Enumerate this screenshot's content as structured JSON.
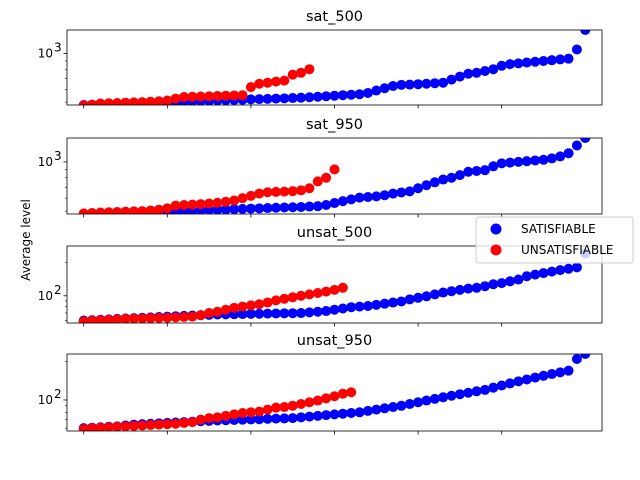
{
  "figure": {
    "ylabel": "Average level",
    "legend_position": "right, overlapping subplots"
  },
  "chart_data": [
    {
      "type": "scatter",
      "title": "sat_500",
      "yscale": "log",
      "ylim": [
        480,
        1400
      ],
      "y_ticks": [
        {
          "value": 1000,
          "label": "10",
          "exp": "3"
        }
      ],
      "series": [
        {
          "name": "SATISFIABLE",
          "color": "#0000ff",
          "x": [
            1,
            2,
            3,
            4,
            5,
            6,
            7,
            8,
            9,
            10,
            11,
            12,
            13,
            14,
            15,
            16,
            17,
            18,
            19,
            20,
            21,
            22,
            23,
            24,
            25,
            26,
            27,
            28,
            29,
            30,
            31,
            32,
            33,
            34,
            35,
            36,
            37,
            38,
            39,
            40,
            41,
            42,
            43,
            44,
            45,
            46,
            47,
            48,
            49,
            50,
            51,
            52,
            53,
            54,
            55,
            56,
            57,
            58,
            59,
            60,
            61
          ],
          "y": [
            480,
            482,
            484,
            486,
            488,
            490,
            492,
            494,
            496,
            498,
            500,
            502,
            504,
            506,
            508,
            510,
            512,
            514,
            516,
            518,
            520,
            522,
            524,
            526,
            528,
            530,
            533,
            536,
            540,
            544,
            548,
            552,
            556,
            560,
            570,
            590,
            610,
            630,
            640,
            642,
            646,
            650,
            655,
            660,
            690,
            720,
            750,
            760,
            780,
            800,
            840,
            860,
            870,
            880,
            890,
            900,
            910,
            920,
            930,
            1060,
            1400
          ]
        },
        {
          "name": "UNSATISFIABLE",
          "color": "#ff0000",
          "x": [
            1,
            2,
            3,
            4,
            5,
            6,
            7,
            8,
            9,
            10,
            11,
            12,
            13,
            14,
            15,
            16,
            17,
            18,
            19,
            20,
            21,
            22,
            23,
            24,
            25,
            26,
            27,
            28
          ],
          "y": [
            478,
            482,
            490,
            492,
            494,
            496,
            498,
            500,
            503,
            506,
            512,
            526,
            538,
            540,
            542,
            544,
            546,
            548,
            550,
            552,
            620,
            650,
            660,
            670,
            680,
            740,
            760,
            800
          ]
        }
      ]
    },
    {
      "type": "scatter",
      "title": "sat_950",
      "yscale": "log",
      "ylim": [
        480,
        1400
      ],
      "y_ticks": [
        {
          "value": 1000,
          "label": "10",
          "exp": "3"
        }
      ],
      "series": [
        {
          "name": "SATISFIABLE",
          "color": "#0000ff",
          "x": [
            1,
            2,
            3,
            4,
            5,
            6,
            7,
            8,
            9,
            10,
            11,
            12,
            13,
            14,
            15,
            16,
            17,
            18,
            19,
            20,
            21,
            22,
            23,
            24,
            25,
            26,
            27,
            28,
            29,
            30,
            31,
            32,
            33,
            34,
            35,
            36,
            37,
            38,
            39,
            40,
            41,
            42,
            43,
            44,
            45,
            46,
            47,
            48,
            49,
            50,
            51,
            52,
            53,
            54,
            55,
            56,
            57,
            58,
            59,
            60,
            61
          ],
          "y": [
            478,
            480,
            482,
            484,
            486,
            488,
            490,
            492,
            494,
            496,
            498,
            500,
            502,
            504,
            506,
            508,
            510,
            512,
            514,
            516,
            518,
            520,
            522,
            524,
            526,
            528,
            530,
            533,
            536,
            545,
            560,
            575,
            590,
            605,
            610,
            615,
            625,
            640,
            650,
            660,
            690,
            720,
            750,
            780,
            800,
            830,
            870,
            880,
            890,
            940,
            980,
            990,
            1000,
            1010,
            1020,
            1030,
            1050,
            1080,
            1130,
            1260,
            1400
          ]
        },
        {
          "name": "UNSATISFIABLE",
          "color": "#ff0000",
          "x": [
            1,
            2,
            3,
            4,
            5,
            6,
            7,
            8,
            9,
            10,
            11,
            12,
            13,
            14,
            15,
            16,
            17,
            18,
            19,
            20,
            21,
            22,
            23,
            24,
            25,
            26,
            27,
            28,
            29,
            30,
            31
          ],
          "y": [
            484,
            487,
            490,
            492,
            494,
            496,
            498,
            500,
            504,
            510,
            520,
            540,
            545,
            548,
            552,
            556,
            562,
            570,
            580,
            600,
            620,
            640,
            652,
            655,
            658,
            662,
            670,
            690,
            760,
            800,
            900
          ]
        }
      ]
    },
    {
      "type": "scatter",
      "title": "unsat_500",
      "yscale": "log",
      "ylim": [
        57,
        280
      ],
      "y_ticks": [
        {
          "value": 100,
          "label": "10",
          "exp": "2"
        }
      ],
      "series": [
        {
          "name": "SATISFIABLE",
          "color": "#0000ff",
          "x": [
            1,
            2,
            3,
            4,
            5,
            6,
            7,
            8,
            9,
            10,
            11,
            12,
            13,
            14,
            15,
            16,
            17,
            18,
            19,
            20,
            21,
            22,
            23,
            24,
            25,
            26,
            27,
            28,
            29,
            30,
            31,
            32,
            33,
            34,
            35,
            36,
            37,
            38,
            39,
            40,
            41,
            42,
            43,
            44,
            45,
            46,
            47,
            48,
            49,
            50,
            51,
            52,
            53,
            54,
            55,
            56,
            57,
            58,
            59,
            60,
            61
          ],
          "y": [
            60,
            60.5,
            61,
            61.5,
            62,
            62.5,
            63,
            63.5,
            64,
            64.5,
            65,
            65.5,
            66,
            66.5,
            67,
            67.5,
            68,
            68.2,
            68.4,
            68.6,
            68.8,
            69,
            69.2,
            69.4,
            69.6,
            69.8,
            70,
            71,
            72,
            73,
            75,
            77,
            79,
            80,
            81,
            83,
            85,
            87,
            89,
            93,
            96,
            99,
            103,
            107,
            110,
            113,
            116,
            118,
            122,
            127,
            130,
            135,
            140,
            150,
            155,
            160,
            165,
            170,
            175,
            180,
            240
          ]
        },
        {
          "name": "UNSATISFIABLE",
          "color": "#ff0000",
          "x": [
            1,
            2,
            3,
            4,
            5,
            6,
            7,
            8,
            9,
            10,
            11,
            12,
            13,
            14,
            15,
            16,
            17,
            18,
            19,
            20,
            21,
            22,
            23,
            24,
            25,
            26,
            27,
            28,
            29,
            30,
            31,
            32
          ],
          "y": [
            59,
            60,
            60.5,
            61,
            61.5,
            62,
            62.3,
            62.6,
            63,
            63.3,
            63.6,
            64,
            64.5,
            65,
            67,
            70,
            72,
            75,
            78,
            80,
            82,
            84,
            87,
            91,
            94,
            97,
            100,
            103,
            106,
            109,
            113,
            118
          ]
        }
      ]
    },
    {
      "type": "scatter",
      "title": "unsat_950",
      "yscale": "log",
      "ylim": [
        57,
        230
      ],
      "y_ticks": [
        {
          "value": 100,
          "label": "10",
          "exp": "2"
        }
      ],
      "series": [
        {
          "name": "SATISFIABLE",
          "color": "#0000ff",
          "x": [
            1,
            2,
            3,
            4,
            5,
            6,
            7,
            8,
            9,
            10,
            11,
            12,
            13,
            14,
            15,
            16,
            17,
            18,
            19,
            20,
            21,
            22,
            23,
            24,
            25,
            26,
            27,
            28,
            29,
            30,
            31,
            32,
            33,
            34,
            35,
            36,
            37,
            38,
            39,
            40,
            41,
            42,
            43,
            44,
            45,
            46,
            47,
            48,
            49,
            50,
            51,
            52,
            53,
            54,
            55,
            56,
            57,
            58,
            59,
            60,
            61
          ],
          "y": [
            60,
            60.5,
            61,
            61.5,
            62,
            63,
            64,
            64.5,
            65,
            65.5,
            66,
            66.5,
            67,
            67.5,
            68,
            68.5,
            69,
            69.3,
            69.6,
            70,
            70.3,
            70.6,
            71,
            71.3,
            71.6,
            72,
            73,
            74,
            75,
            76,
            77,
            78,
            79,
            80,
            82,
            84,
            86,
            88,
            90,
            93,
            96,
            99,
            102,
            105,
            108,
            111,
            114,
            117,
            120,
            125,
            130,
            135,
            140,
            145,
            150,
            155,
            160,
            165,
            170,
            210,
            230
          ]
        },
        {
          "name": "UNSATISFIABLE",
          "color": "#ff0000",
          "x": [
            1,
            2,
            3,
            4,
            5,
            6,
            7,
            8,
            9,
            10,
            11,
            12,
            13,
            14,
            15,
            16,
            17,
            18,
            19,
            20,
            21,
            22,
            23,
            24,
            25,
            26,
            27,
            28,
            29,
            30,
            31,
            32,
            33
          ],
          "y": [
            59,
            60,
            60.5,
            61,
            61.5,
            62,
            62.5,
            63,
            63.5,
            64,
            64.5,
            65,
            66,
            67,
            70,
            72,
            73,
            75,
            77,
            79,
            80,
            81,
            84,
            87,
            88,
            90,
            93,
            96,
            99,
            103,
            107,
            112,
            115
          ]
        }
      ]
    }
  ]
}
